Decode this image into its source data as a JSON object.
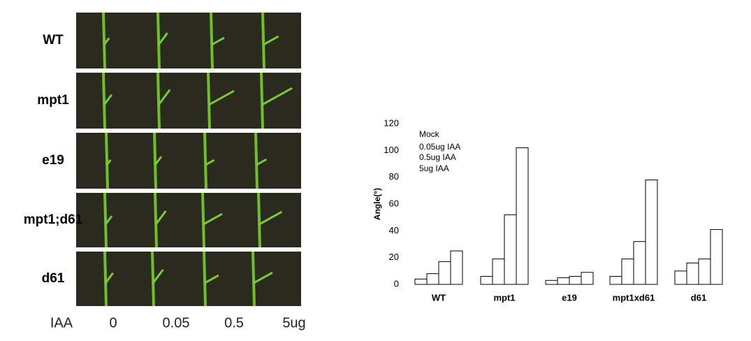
{
  "photo": {
    "rows": [
      "WT",
      "mpt1",
      "e19",
      "mpt1;d61",
      "d61"
    ],
    "columns": [
      "IAA",
      "0",
      "0.05",
      "0.5",
      "5ug"
    ]
  },
  "chart_data": {
    "type": "bar",
    "y_label": "Angle(°)",
    "categories": [
      "WT",
      "mpt1",
      "e19",
      "mpt1xd61",
      "d61"
    ],
    "series": [
      {
        "name": "Mock",
        "color": "#ffffff",
        "values": [
          4,
          6,
          3,
          6,
          10
        ]
      },
      {
        "name": "0.05ug IAA",
        "color": "#ffffff",
        "values": [
          8,
          19,
          5,
          19,
          16
        ]
      },
      {
        "name": "0.5ug IAA",
        "color": "#ffffff",
        "values": [
          17,
          52,
          6,
          32,
          19
        ]
      },
      {
        "name": "5ug IAA",
        "color": "#ffffff",
        "values": [
          25,
          102,
          9,
          78,
          41
        ]
      }
    ],
    "ylim": [
      0,
      120
    ],
    "yticks": [
      0,
      20,
      40,
      60,
      80,
      100,
      120
    ],
    "grid": false
  }
}
